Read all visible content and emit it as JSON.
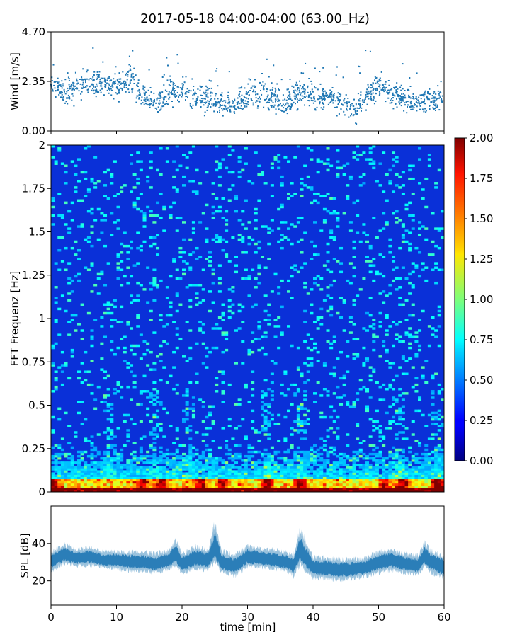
{
  "title": "2017-05-18 04:00-04:00 (63.00_Hz)",
  "chart_data": [
    {
      "type": "scatter",
      "name": "wind",
      "ylabel": "Wind [m/s]",
      "xlim": [
        0,
        60
      ],
      "ylim": [
        0,
        4.7
      ],
      "yticks": [
        "0.00",
        "2.35",
        "4.70"
      ],
      "color": "#1f77b4",
      "x_share": "time [min]",
      "summary_profile": {
        "minutes": [
          0,
          2,
          4,
          6,
          8,
          10,
          12,
          14,
          16,
          18,
          20,
          22,
          24,
          26,
          28,
          30,
          32,
          34,
          36,
          38,
          40,
          42,
          44,
          46,
          48,
          50,
          52,
          54,
          56,
          58,
          60
        ],
        "mean_m_s": [
          2.3,
          1.7,
          2.0,
          2.4,
          2.2,
          2.0,
          2.6,
          1.6,
          1.3,
          1.9,
          2.0,
          1.5,
          1.6,
          1.4,
          1.2,
          1.7,
          1.8,
          1.5,
          1.3,
          1.9,
          1.5,
          1.7,
          1.4,
          1.0,
          1.5,
          2.2,
          1.8,
          1.5,
          1.3,
          1.4,
          1.6
        ],
        "peak_m_s": [
          3.6,
          3.2,
          3.5,
          4.1,
          4.3,
          3.9,
          4.4,
          3.2,
          2.9,
          3.6,
          4.0,
          3.1,
          3.5,
          3.3,
          2.8,
          4.0,
          3.5,
          3.3,
          2.8,
          3.4,
          3.1,
          3.3,
          3.0,
          2.8,
          4.7,
          3.2,
          3.0,
          3.3,
          2.9,
          3.5,
          2.8
        ]
      }
    },
    {
      "type": "heatmap",
      "name": "spectrogram",
      "ylabel": "FFT Frequenz [Hz]",
      "xlim": [
        0,
        60
      ],
      "ylim": [
        0,
        2
      ],
      "yticks": [
        "0",
        "0.25",
        "0.5",
        "0.75",
        "1",
        "1.25",
        "1.5",
        "1.75",
        "2"
      ],
      "colormap": "jet",
      "colorbar": {
        "range": [
          0,
          2
        ],
        "ticks": [
          "0.00",
          "0.25",
          "0.50",
          "0.75",
          "1.00",
          "1.25",
          "1.50",
          "1.75",
          "2.00"
        ]
      },
      "low_freq_hotspots_min": [
        0.5,
        14,
        17,
        23,
        26,
        33,
        38,
        51,
        54,
        59
      ],
      "mid_band_highlights_min": [
        9,
        16,
        21,
        33,
        38,
        53,
        59
      ]
    },
    {
      "type": "area",
      "name": "spl",
      "ylabel": "SPL [dB]",
      "xlabel": "time [min]",
      "xlim": [
        0,
        60
      ],
      "ylim": [
        7,
        60
      ],
      "yticks": [
        "20",
        "40"
      ],
      "xticks": [
        "0",
        "10",
        "20",
        "30",
        "40",
        "50",
        "60"
      ],
      "color": "#1f77b4",
      "envelope": {
        "minutes": [
          0,
          2,
          4,
          6,
          8,
          10,
          12,
          14,
          16,
          18,
          19,
          20,
          22,
          24,
          25,
          26,
          28,
          30,
          32,
          34,
          36,
          37,
          38,
          40,
          42,
          44,
          46,
          48,
          50,
          52,
          54,
          56,
          57,
          58,
          60
        ],
        "mid_dB": [
          30,
          34,
          32,
          33,
          31,
          31,
          30,
          30,
          29,
          31,
          34,
          29,
          32,
          31,
          37,
          30,
          28,
          33,
          32,
          31,
          30,
          28,
          36,
          27,
          27,
          26,
          26,
          27,
          30,
          31,
          29,
          28,
          33,
          30,
          27
        ],
        "low_dB": [
          24,
          28,
          27,
          27,
          26,
          25,
          24,
          24,
          23,
          25,
          27,
          22,
          25,
          24,
          29,
          23,
          21,
          26,
          26,
          25,
          24,
          21,
          27,
          20,
          20,
          19,
          20,
          21,
          23,
          24,
          23,
          22,
          26,
          23,
          20
        ],
        "high_dB": [
          37,
          41,
          38,
          39,
          37,
          37,
          37,
          37,
          36,
          38,
          44,
          36,
          40,
          38,
          55,
          38,
          35,
          40,
          39,
          38,
          37,
          35,
          50,
          34,
          34,
          33,
          33,
          34,
          37,
          38,
          36,
          35,
          42,
          38,
          35
        ]
      }
    }
  ]
}
